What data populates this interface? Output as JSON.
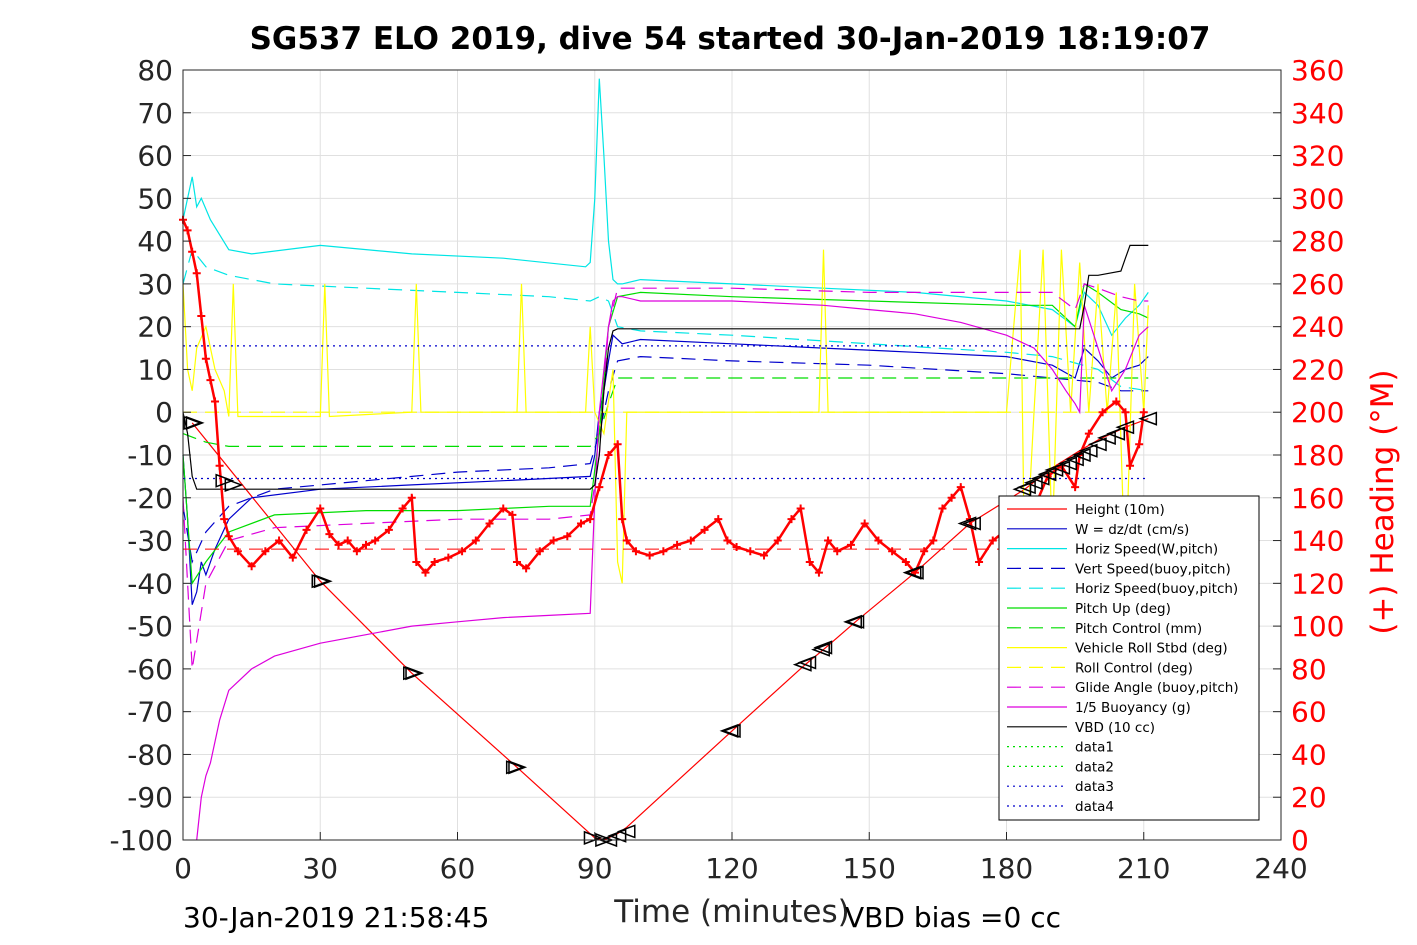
{
  "chart_data": {
    "type": "line",
    "title": "SG537 ELO 2019, dive 54 started 30-Jan-2019 18:19:07",
    "xlabel": "Time (minutes)",
    "ylabel": "",
    "y2label": "(+) Heading (°M)",
    "xlim": [
      0,
      240
    ],
    "ylim": [
      -100,
      80
    ],
    "y2lim": [
      0,
      360
    ],
    "xticks": [
      "0",
      "30",
      "60",
      "90",
      "120",
      "150",
      "180",
      "210",
      "240"
    ],
    "yticks": [
      "80",
      "70",
      "60",
      "50",
      "40",
      "30",
      "20",
      "10",
      "0",
      "-10",
      "-20",
      "-30",
      "-40",
      "-50",
      "-60",
      "-70",
      "-80",
      "-90",
      "-100"
    ],
    "y2ticks": [
      "360",
      "340",
      "320",
      "300",
      "280",
      "260",
      "240",
      "220",
      "200",
      "180",
      "160",
      "140",
      "120",
      "100",
      "80",
      "60",
      "40",
      "20",
      "0"
    ],
    "grid": true,
    "legend_position": "bottom-right",
    "footer_left": "30-Jan-2019 21:58:45",
    "footer_right": "VBD bias =0 cc",
    "colors": {
      "red": "#ff0000",
      "blue": "#0000cc",
      "cyan": "#00e5e5",
      "green": "#00dd00",
      "yellow": "#ffff00",
      "magenta": "#dd00dd",
      "black": "#000000"
    },
    "series": [
      {
        "name": "Height (10m)",
        "color": "#ff0000",
        "dash": "solid",
        "x": [
          2,
          30,
          50,
          73,
          90,
          92,
          95,
          97,
          120,
          136,
          140,
          147,
          160,
          172,
          184,
          187,
          190,
          193,
          196,
          200,
          203,
          206,
          211
        ],
        "y": [
          -2.5,
          -39.5,
          -61,
          -83,
          -99.5,
          -100,
          -98.5,
          -97,
          -74.5,
          -59,
          -55.5,
          -49,
          -37.5,
          -26,
          -18,
          -15.5,
          -13,
          -11,
          -9,
          -6.5,
          -5,
          -3.5,
          -1.5
        ]
      },
      {
        "name": "W = dz/dt (cm/s)",
        "color": "#0000cc",
        "dash": "solid",
        "x": [
          0,
          1,
          2,
          3,
          4,
          5,
          7,
          10,
          15,
          30,
          50,
          70,
          89,
          90,
          91,
          92,
          93,
          94,
          95,
          96,
          100,
          120,
          140,
          160,
          180,
          190,
          195,
          197,
          200,
          203,
          206,
          209,
          211
        ],
        "y": [
          -10,
          -25,
          -45,
          -42,
          -35,
          -38,
          -32,
          -25,
          -20,
          -18,
          -17,
          -16,
          -15,
          -10,
          0,
          5,
          12,
          18,
          17,
          16,
          17,
          16,
          15,
          14,
          13,
          11,
          8,
          15,
          12,
          8,
          10,
          11,
          13
        ]
      },
      {
        "name": "Horiz Speed(W,pitch)",
        "color": "#00e5e5",
        "dash": "solid",
        "x": [
          0,
          1,
          2,
          3,
          4,
          6,
          10,
          15,
          30,
          50,
          70,
          88,
          89,
          90,
          91,
          92,
          93,
          94,
          95,
          96,
          100,
          120,
          140,
          160,
          180,
          190,
          195,
          197,
          200,
          203,
          206,
          209,
          211
        ],
        "y": [
          45,
          50,
          55,
          48,
          50,
          45,
          38,
          37,
          39,
          37,
          36,
          34,
          35,
          50,
          78,
          60,
          40,
          31,
          30,
          30,
          31,
          30,
          29,
          28,
          26,
          24,
          20,
          28,
          25,
          18,
          22,
          25,
          28
        ]
      },
      {
        "name": "Vert Speed(buoy,pitch)",
        "color": "#0000cc",
        "dash": "dashed",
        "x": [
          0,
          2,
          5,
          10,
          20,
          40,
          60,
          80,
          89,
          91,
          93,
          95,
          100,
          120,
          150,
          180,
          190,
          200,
          205,
          211
        ],
        "y": [
          -22,
          -35,
          -28,
          -22,
          -18,
          -16,
          -14,
          -13,
          -12,
          -5,
          5,
          12,
          13,
          12,
          11,
          9,
          8,
          7,
          5,
          5
        ]
      },
      {
        "name": "Horiz Speed(buoy,pitch)",
        "color": "#00e5e5",
        "dash": "dashed",
        "x": [
          0,
          2,
          5,
          10,
          20,
          40,
          60,
          80,
          89,
          91,
          93,
          95,
          100,
          120,
          150,
          180,
          190,
          200,
          205,
          211
        ],
        "y": [
          30,
          38,
          34,
          32,
          30,
          29,
          28,
          27,
          26,
          27,
          26,
          20,
          19,
          18,
          16,
          14,
          13,
          10,
          6,
          5
        ]
      },
      {
        "name": "Pitch Up (deg)",
        "color": "#00dd00",
        "dash": "solid",
        "x": [
          0,
          2,
          5,
          10,
          20,
          40,
          60,
          80,
          89,
          91,
          93,
          95,
          100,
          120,
          150,
          180,
          190,
          195,
          197,
          200,
          205,
          209,
          211
        ],
        "y": [
          -10,
          -40,
          -35,
          -28,
          -24,
          -23,
          -23,
          -22,
          -22,
          -5,
          20,
          27,
          28,
          27,
          26,
          25,
          25,
          20,
          30,
          28,
          24,
          23,
          22
        ]
      },
      {
        "name": "Pitch Control (mm)",
        "color": "#00dd00",
        "dash": "dashed",
        "x": [
          0,
          5,
          10,
          20,
          40,
          60,
          80,
          89,
          91,
          93,
          95,
          100,
          120,
          150,
          180,
          190,
          200,
          205,
          211
        ],
        "y": [
          -5,
          -7,
          -8,
          -8,
          -8,
          -8,
          -8,
          -8,
          -5,
          2,
          8,
          8,
          8,
          8,
          8,
          8,
          8,
          8,
          8
        ]
      },
      {
        "name": "Vehicle Roll Stbd (deg)",
        "color": "#ffff00",
        "dash": "solid",
        "x": [
          0,
          1,
          2,
          3,
          5,
          7,
          9,
          10,
          11,
          12,
          30,
          31,
          32,
          50,
          51,
          52,
          73,
          74,
          75,
          88,
          89,
          90,
          92,
          94,
          95,
          96,
          97,
          98,
          100,
          120,
          139,
          140,
          141,
          150,
          180,
          183,
          184,
          186,
          188,
          190,
          192,
          194,
          196,
          198,
          200,
          202,
          204,
          206,
          208,
          210,
          211
        ],
        "y": [
          30,
          10,
          5,
          15,
          20,
          10,
          5,
          -1,
          30,
          -1,
          -1,
          30,
          -1,
          0,
          30,
          0,
          0,
          30,
          0,
          0,
          20,
          0,
          -5,
          10,
          -35,
          -40,
          0,
          0,
          0,
          0,
          0,
          38,
          0,
          0,
          0,
          38,
          -40,
          0,
          38,
          -30,
          38,
          0,
          35,
          0,
          30,
          0,
          28,
          -40,
          30,
          0,
          25
        ]
      },
      {
        "name": "Roll Control (deg)",
        "color": "#ffff00",
        "dash": "dashed",
        "x": [
          0,
          10,
          20,
          40,
          60,
          80,
          90,
          100,
          120,
          140,
          160,
          180,
          190,
          200,
          211
        ],
        "y": [
          0,
          0,
          0,
          0,
          0,
          0,
          0,
          0,
          0,
          0,
          0,
          0,
          0,
          0,
          0
        ]
      },
      {
        "name": "Glide Angle (buoy,pitch)",
        "color": "#dd00dd",
        "dash": "dashed",
        "x": [
          0,
          2,
          5,
          10,
          20,
          40,
          60,
          80,
          89,
          91,
          93,
          95,
          100,
          120,
          150,
          180,
          190,
          195,
          197,
          200,
          205,
          209,
          211
        ],
        "y": [
          -20,
          -60,
          -40,
          -30,
          -27,
          -26,
          -25,
          -25,
          -24,
          -10,
          20,
          29,
          29,
          29,
          28,
          28,
          28,
          24,
          30,
          29,
          27,
          26,
          26
        ]
      },
      {
        "name": "1/5 Buoyancy (g)",
        "color": "#dd00dd",
        "dash": "solid",
        "x": [
          3,
          4,
          5,
          6,
          8,
          10,
          15,
          20,
          30,
          40,
          50,
          60,
          70,
          80,
          89,
          90,
          91,
          92,
          93,
          94,
          95,
          96,
          100,
          120,
          140,
          150,
          160,
          170,
          180,
          186,
          190,
          193,
          195,
          196,
          197,
          200,
          203,
          206,
          209,
          211
        ],
        "y": [
          -100,
          -90,
          -85,
          -82,
          -72,
          -65,
          -60,
          -57,
          -54,
          -52,
          -50,
          -49,
          -48,
          -47.5,
          -47,
          -20,
          0,
          10,
          20,
          26,
          27,
          27,
          26,
          26,
          25,
          24,
          23,
          21,
          18,
          15,
          10,
          5,
          2,
          0,
          25,
          15,
          5,
          10,
          18,
          20
        ]
      },
      {
        "name": "VBD (10 cc)",
        "color": "#000000",
        "dash": "solid",
        "x": [
          0,
          1,
          2,
          3,
          89,
          90,
          91,
          92,
          93,
          94,
          95,
          196,
          197,
          198,
          200,
          205,
          206,
          207,
          211
        ],
        "y": [
          0,
          -5,
          -15,
          -18,
          -18,
          -17,
          -10,
          5,
          15,
          19,
          19.5,
          19.5,
          25,
          32,
          32,
          33,
          36,
          39,
          39
        ]
      },
      {
        "name": "data1",
        "color": "#00dd00",
        "dash": "dotted",
        "x": [],
        "y": []
      },
      {
        "name": "data2",
        "color": "#00dd00",
        "dash": "dotted",
        "x": [],
        "y": []
      },
      {
        "name": "data3",
        "color": "#0000cc",
        "dash": "dotted",
        "x": [
          0,
          211
        ],
        "y": [
          15.5,
          15.5
        ]
      },
      {
        "name": "data4",
        "color": "#0000cc",
        "dash": "dotted",
        "x": [
          0,
          211
        ],
        "y": [
          -15.5,
          -15.5
        ]
      }
    ],
    "heading": {
      "axis": "right",
      "color": "#ff0000",
      "marker": "+",
      "x": [
        0,
        1,
        2,
        3,
        4,
        5,
        6,
        7,
        8,
        9,
        10,
        12,
        15,
        18,
        21,
        24,
        27,
        30,
        32,
        34,
        36,
        38,
        40,
        42,
        45,
        48,
        50,
        51,
        53,
        55,
        58,
        61,
        64,
        67,
        70,
        72,
        73,
        75,
        78,
        81,
        84,
        87,
        89,
        91,
        93,
        95,
        96,
        97,
        99,
        102,
        105,
        108,
        111,
        114,
        117,
        119,
        121,
        124,
        127,
        130,
        133,
        135,
        137,
        139,
        141,
        143,
        146,
        149,
        152,
        155,
        158,
        160,
        162,
        164,
        166,
        168,
        170,
        172,
        174,
        177,
        180,
        183,
        186,
        189,
        192,
        195,
        196,
        198,
        201,
        204,
        206,
        207,
        209,
        210
      ],
      "y": [
        290,
        285,
        275,
        265,
        245,
        225,
        215,
        205,
        175,
        150,
        142,
        135,
        128,
        135,
        140,
        132,
        145,
        155,
        143,
        138,
        140,
        135,
        138,
        140,
        145,
        155,
        160,
        130,
        125,
        130,
        132,
        135,
        140,
        148,
        155,
        152,
        130,
        127,
        135,
        140,
        142,
        148,
        150,
        165,
        180,
        185,
        150,
        140,
        135,
        133,
        135,
        138,
        140,
        145,
        150,
        140,
        137,
        135,
        133,
        140,
        150,
        155,
        130,
        125,
        140,
        135,
        138,
        148,
        140,
        135,
        130,
        125,
        135,
        140,
        155,
        160,
        165,
        150,
        130,
        140,
        145,
        150,
        155,
        170,
        175,
        165,
        180,
        190,
        200,
        205,
        200,
        175,
        185,
        200
      ]
    },
    "markers": {
      "color": "#000000",
      "x": [
        2,
        2.5,
        9,
        11,
        30,
        30.5,
        50,
        50.5,
        72.5,
        73,
        89.5,
        92,
        93,
        95,
        97,
        119.5,
        120,
        135.5,
        136.5,
        139.5,
        140,
        146.5,
        147,
        159.5,
        160,
        171.5,
        172.5,
        183.5,
        184.5,
        186,
        187.5,
        189,
        190.5,
        192,
        193.5,
        195,
        196.5,
        198,
        200,
        202,
        204,
        206,
        211
      ],
      "y": [
        -2.5,
        -2.5,
        -16,
        -17,
        -39.5,
        -39.5,
        -61,
        -61,
        -83,
        -83,
        -99.5,
        -100,
        -100,
        -99,
        -98,
        -74.5,
        -74.5,
        -59,
        -58.5,
        -55.5,
        -55,
        -49,
        -49,
        -37.5,
        -37.5,
        -26,
        -26,
        -18,
        -17.5,
        -16.5,
        -15.5,
        -14.5,
        -13.5,
        -13,
        -12,
        -11,
        -10,
        -9,
        -7.5,
        -6,
        -5,
        -3.5,
        -1.5
      ]
    }
  }
}
